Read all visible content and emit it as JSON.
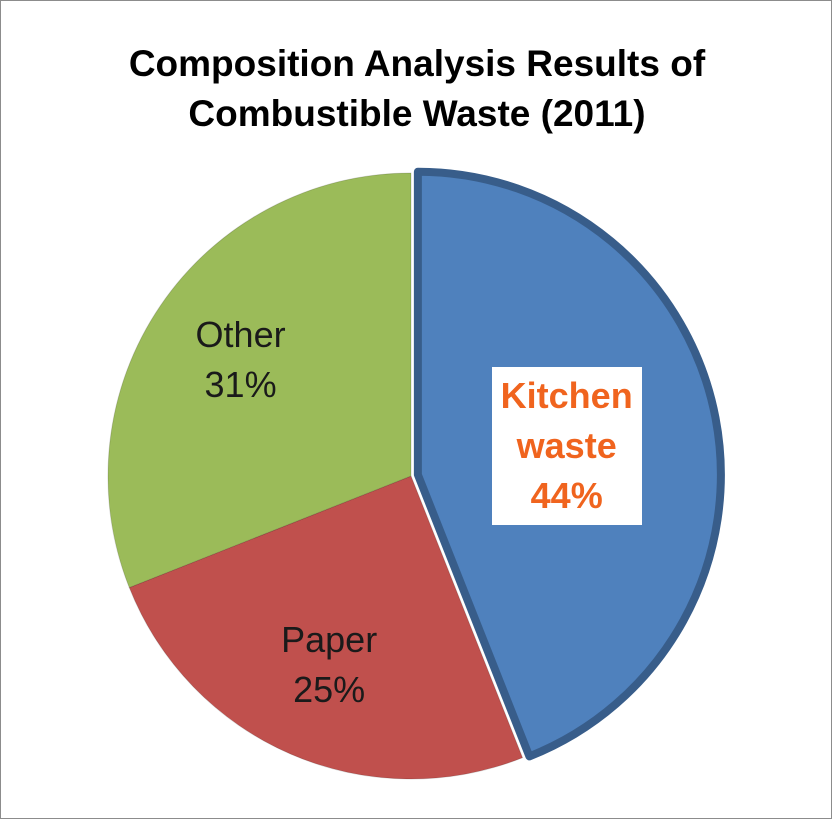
{
  "chart_data": {
    "type": "pie",
    "title": "Composition Analysis Results of Combustible Waste (2011)",
    "categories": [
      "Kitchen waste",
      "Paper",
      "Other"
    ],
    "values": [
      44,
      25,
      31
    ],
    "value_labels": [
      "44%",
      "25%",
      "31%"
    ],
    "colors": [
      "#4f81bd",
      "#c0504d",
      "#9bbb59"
    ]
  }
}
